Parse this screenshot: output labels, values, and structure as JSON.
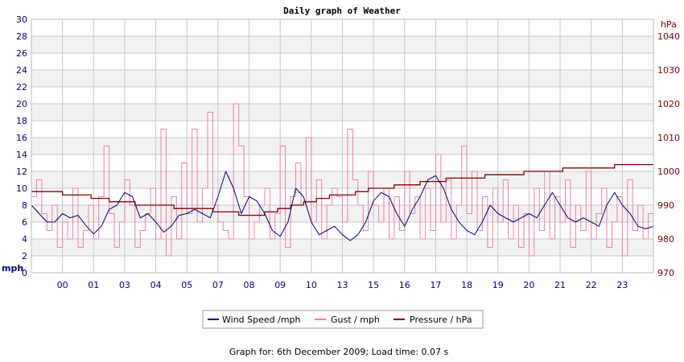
{
  "chart_data": {
    "type": "line",
    "title": "Daily graph of Weather",
    "x_ticks": [
      "00",
      "01",
      "03",
      "04",
      "05",
      "07",
      "08",
      "09",
      "10",
      "13",
      "15",
      "16",
      "17",
      "18",
      "19",
      "20",
      "21",
      "22",
      "23"
    ],
    "y_left": {
      "label": "mph",
      "min": 0,
      "max": 30,
      "ticks": [
        0,
        2,
        4,
        6,
        8,
        10,
        12,
        14,
        16,
        18,
        20,
        22,
        24,
        26,
        28,
        30
      ]
    },
    "y_right": {
      "label": "hPa",
      "min": 970,
      "max": 1045,
      "ticks": [
        970,
        980,
        990,
        1000,
        1010,
        1020,
        1030,
        1040
      ]
    },
    "grid": true,
    "legend_position": "bottom",
    "colors": {
      "wind": "#000080",
      "gust": "#f27fa6",
      "pressure": "#800000",
      "left_axis": "#000080",
      "right_axis": "#800000",
      "band": "#f2f2f2",
      "grid": "#c8c8c8"
    },
    "series": [
      {
        "name": "Wind Speed /mph",
        "key": "wind",
        "axis": "left",
        "x": [
          0.0,
          0.3,
          0.6,
          0.9,
          1.2,
          1.5,
          1.8,
          2.1,
          2.4,
          2.7,
          3.0,
          3.3,
          3.6,
          3.9,
          4.2,
          4.5,
          4.8,
          5.1,
          5.4,
          5.7,
          6.0,
          6.3,
          6.6,
          6.9,
          7.2,
          7.5,
          7.8,
          8.1,
          8.4,
          8.7,
          9.0,
          9.3,
          9.6,
          9.9,
          10.2,
          10.5,
          10.8,
          11.1,
          11.4,
          11.7,
          12.0,
          12.3,
          12.6,
          12.9,
          13.2,
          13.5,
          13.8,
          14.1,
          14.4,
          14.7,
          15.0,
          15.3,
          15.6,
          15.9,
          16.2,
          16.5,
          16.8,
          17.1,
          17.4,
          17.7,
          18.0,
          18.3,
          18.6,
          18.9,
          19.2,
          19.5,
          19.8,
          20.1,
          20.4,
          20.7,
          21.0,
          21.3,
          21.6,
          21.9,
          22.2,
          22.5,
          22.8,
          23.1,
          23.4,
          23.7,
          24.0
        ],
        "values": [
          8.0,
          7.0,
          6.0,
          6.0,
          7.0,
          6.5,
          6.8,
          5.6,
          4.6,
          5.5,
          7.5,
          8.0,
          9.5,
          9.0,
          6.5,
          7.0,
          6.0,
          4.8,
          5.5,
          6.8,
          7.0,
          7.5,
          7.0,
          6.5,
          9.0,
          12.0,
          10.0,
          7.0,
          9.0,
          8.5,
          7.0,
          5.0,
          4.3,
          6.0,
          10.0,
          9.0,
          6.0,
          4.5,
          5.0,
          5.5,
          4.5,
          3.8,
          4.5,
          6.0,
          8.5,
          9.5,
          9.0,
          7.0,
          5.5,
          7.5,
          9.0,
          11.0,
          11.5,
          10.0,
          7.5,
          6.0,
          5.0,
          4.5,
          6.0,
          8.0,
          7.0,
          6.5,
          6.0,
          6.5,
          7.0,
          6.5,
          8.0,
          9.5,
          8.0,
          6.5,
          6.0,
          6.5,
          6.0,
          5.5,
          8.0,
          9.5,
          8.0,
          7.0,
          5.5,
          5.2,
          5.5
        ]
      },
      {
        "name": "Gust / mph",
        "key": "gust",
        "axis": "left",
        "x": [
          0.0,
          0.2,
          0.4,
          0.6,
          0.8,
          1.0,
          1.2,
          1.4,
          1.6,
          1.8,
          2.0,
          2.2,
          2.4,
          2.6,
          2.8,
          3.0,
          3.2,
          3.4,
          3.6,
          3.8,
          4.0,
          4.2,
          4.4,
          4.6,
          4.8,
          5.0,
          5.2,
          5.4,
          5.6,
          5.8,
          6.0,
          6.2,
          6.4,
          6.6,
          6.8,
          7.0,
          7.2,
          7.4,
          7.6,
          7.8,
          8.0,
          8.2,
          8.4,
          8.6,
          8.8,
          9.0,
          9.2,
          9.4,
          9.6,
          9.8,
          10.0,
          10.2,
          10.4,
          10.6,
          10.8,
          11.0,
          11.2,
          11.4,
          11.6,
          11.8,
          12.0,
          12.2,
          12.4,
          12.6,
          12.8,
          13.0,
          13.2,
          13.4,
          13.6,
          13.8,
          14.0,
          14.2,
          14.4,
          14.6,
          14.8,
          15.0,
          15.2,
          15.4,
          15.6,
          15.8,
          16.0,
          16.2,
          16.4,
          16.6,
          16.8,
          17.0,
          17.2,
          17.4,
          17.6,
          17.8,
          18.0,
          18.2,
          18.4,
          18.6,
          18.8,
          19.0,
          19.2,
          19.4,
          19.6,
          19.8,
          20.0,
          20.2,
          20.4,
          20.6,
          20.8,
          21.0,
          21.2,
          21.4,
          21.6,
          21.8,
          22.0,
          22.2,
          22.4,
          22.6,
          22.8,
          23.0,
          23.2,
          23.4,
          23.6,
          23.8,
          24.0
        ],
        "values": [
          9,
          11,
          7,
          5,
          8,
          3,
          6,
          4,
          10,
          3,
          5,
          8,
          4,
          9,
          15,
          7,
          3,
          6,
          11,
          8,
          3,
          5,
          7,
          10,
          4,
          17,
          2,
          9,
          4,
          13,
          7,
          17,
          6,
          10,
          19,
          8,
          6,
          5,
          4,
          20,
          15,
          9,
          4,
          6,
          8,
          10,
          4,
          7,
          15,
          3,
          9,
          13,
          8,
          16,
          6,
          11,
          4,
          8,
          10,
          9,
          6,
          17,
          11,
          8,
          5,
          12,
          8,
          6,
          10,
          4,
          9,
          5,
          12,
          7,
          9,
          4,
          10,
          5,
          14,
          6,
          11,
          4,
          8,
          15,
          7,
          12,
          5,
          9,
          3,
          10,
          6,
          11,
          4,
          8,
          3,
          7,
          2,
          10,
          5,
          12,
          4,
          9,
          6,
          11,
          3,
          8,
          5,
          12,
          4,
          7,
          10,
          3,
          6,
          9,
          2,
          11,
          5,
          8,
          4,
          7,
          6
        ]
      },
      {
        "name": "Pressure / hPa",
        "key": "pressure",
        "axis": "right",
        "x": [
          0.0,
          1.0,
          1.2,
          2.0,
          2.3,
          3.0,
          3.8,
          4.0,
          5.0,
          5.5,
          6.0,
          7.0,
          7.5,
          8.0,
          8.5,
          9.0,
          9.5,
          10.0,
          10.5,
          11.0,
          11.5,
          12.0,
          12.5,
          13.0,
          13.5,
          14.0,
          14.5,
          15.0,
          15.5,
          16.0,
          16.5,
          17.0,
          17.5,
          18.0,
          18.5,
          19.0,
          19.5,
          20.0,
          20.5,
          21.0,
          21.5,
          22.0,
          22.5,
          23.0,
          23.5,
          24.0
        ],
        "values": [
          994,
          994,
          993,
          993,
          992,
          991,
          991,
          990,
          990,
          989,
          989,
          988,
          988,
          987,
          987,
          988,
          989,
          990,
          991,
          992,
          993,
          993,
          994,
          995,
          995,
          996,
          996,
          997,
          997,
          998,
          998,
          998,
          999,
          999,
          999,
          1000,
          1000,
          1000,
          1001,
          1001,
          1001,
          1001,
          1002,
          1002,
          1002,
          1002
        ]
      }
    ]
  },
  "footer": {
    "text": "Graph for: 6th December 2009; Load time: 0.07 s"
  }
}
